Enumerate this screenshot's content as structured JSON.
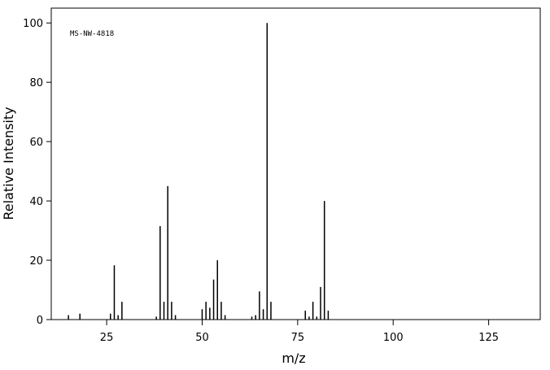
{
  "chart_data": {
    "type": "stick",
    "annotation": "MS-NW-4818",
    "xlabel": "m/z",
    "ylabel": "Relative Intensity",
    "x": [
      15,
      18,
      26,
      27,
      28,
      29,
      38,
      39,
      40,
      41,
      42,
      43,
      50,
      51,
      52,
      53,
      54,
      55,
      56,
      63,
      64,
      65,
      66,
      67,
      68,
      77,
      78,
      79,
      80,
      81,
      82,
      83
    ],
    "values": [
      1.5,
      2,
      2,
      18.3,
      1.5,
      6,
      1,
      31.5,
      6,
      45,
      6,
      1.5,
      3.5,
      6,
      4,
      13.5,
      20,
      6,
      1.5,
      1,
      1.5,
      9.5,
      3.5,
      100,
      6,
      3,
      1,
      6,
      1,
      11,
      40,
      3
    ],
    "color": "#000000",
    "xlim": [
      10.5,
      138.5
    ],
    "ylim": [
      0,
      105
    ],
    "xticks": [
      25,
      50,
      75,
      100,
      125
    ],
    "yticks": [
      0,
      20,
      40,
      60,
      80,
      100
    ]
  }
}
